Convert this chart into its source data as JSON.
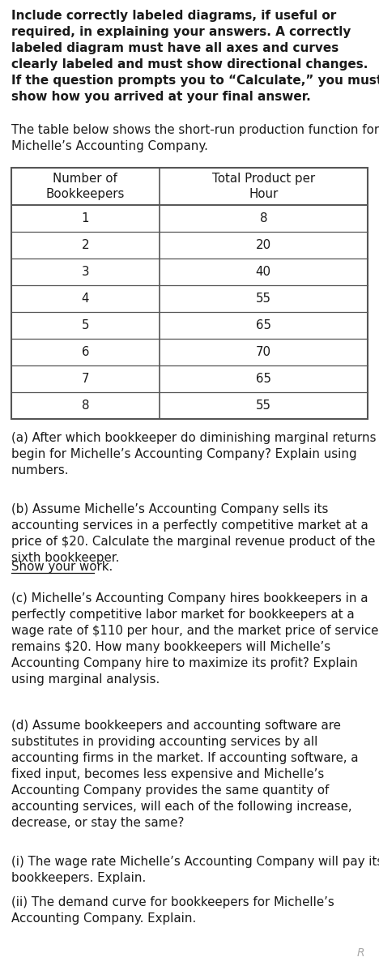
{
  "header_bold_text": "Include correctly labeled diagrams, if useful or\nrequired, in explaining your answers. A correctly\nlabeled diagram must have all axes and curves\nclearly labeled and must show directional changes.\nIf the question prompts you to “Calculate,” you must\nshow how you arrived at your final answer.",
  "intro_text": "The table below shows the short-run production function for\nMichelle’s Accounting Company.",
  "table_col1_header": "Number of\nBookkeepers",
  "table_col2_header": "Total Product per\nHour",
  "table_data": [
    [
      1,
      8
    ],
    [
      2,
      20
    ],
    [
      3,
      40
    ],
    [
      4,
      55
    ],
    [
      5,
      65
    ],
    [
      6,
      70
    ],
    [
      7,
      65
    ],
    [
      8,
      55
    ]
  ],
  "question_a": "(a) After which bookkeeper do diminishing marginal returns\nbegin for Michelle’s Accounting Company? Explain using\nnumbers.",
  "question_b_pre": "(b) Assume Michelle’s Accounting Company sells its\naccounting services in a perfectly competitive market at a\nprice of $20. Calculate the marginal revenue product of the\nsixth bookkeeper. ",
  "question_b_underline": "Show your work.",
  "question_c": "(c) Michelle’s Accounting Company hires bookkeepers in a\nperfectly competitive labor market for bookkeepers at a\nwage rate of $110 per hour, and the market price of services\nremains $20. How many bookkeepers will Michelle’s\nAccounting Company hire to maximize its profit? Explain\nusing marginal analysis.",
  "question_d": "(d) Assume bookkeepers and accounting software are\nsubstitutes in providing accounting services by all\naccounting firms in the market. If accounting software, a\nfixed input, becomes less expensive and Michelle’s\nAccounting Company provides the same quantity of\naccounting services, will each of the following increase,\ndecrease, or stay the same?",
  "question_di": "(i) The wage rate Michelle’s Accounting Company will pay its\nbookkeepers. Explain.",
  "question_dii": "(ii) The demand curve for bookkeepers for Michelle’s\nAccounting Company. Explain.",
  "bg_color": "#ffffff",
  "text_color": "#1a1a1a",
  "table_border_color": "#555555",
  "figwidth": 4.68,
  "figheight": 11.97,
  "dpi": 100
}
